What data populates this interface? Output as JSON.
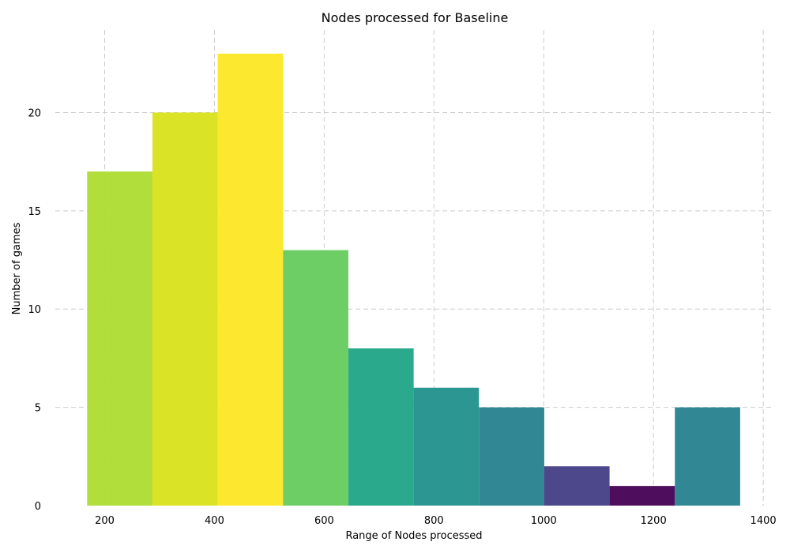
{
  "chart_data": {
    "type": "bar",
    "title": "Nodes processed for Baseline",
    "xlabel": "Range of Nodes processed",
    "ylabel": "Number of games",
    "xlim": [
      110,
      1420
    ],
    "ylim": [
      0,
      24.2
    ],
    "xticks": [
      200,
      400,
      600,
      800,
      1000,
      1200,
      1400
    ],
    "yticks": [
      0,
      5,
      10,
      15,
      20
    ],
    "grid": true,
    "bins": [
      {
        "start": 168,
        "end": 287,
        "count": 17,
        "color": "#addc30"
      },
      {
        "start": 287,
        "end": 406,
        "count": 20,
        "color": "#d8e219"
      },
      {
        "start": 406,
        "end": 525,
        "count": 23,
        "color": "#fde725"
      },
      {
        "start": 525,
        "end": 644,
        "count": 13,
        "color": "#65cb5e"
      },
      {
        "start": 644,
        "end": 763,
        "count": 8,
        "color": "#20a486"
      },
      {
        "start": 763,
        "end": 882,
        "count": 6,
        "color": "#21918c"
      },
      {
        "start": 882,
        "end": 1001,
        "count": 5,
        "color": "#26828e"
      },
      {
        "start": 1001,
        "end": 1120,
        "count": 2,
        "color": "#433e85"
      },
      {
        "start": 1120,
        "end": 1239,
        "count": 1,
        "color": "#440154"
      },
      {
        "start": 1239,
        "end": 1358,
        "count": 5,
        "color": "#26828e"
      }
    ]
  }
}
